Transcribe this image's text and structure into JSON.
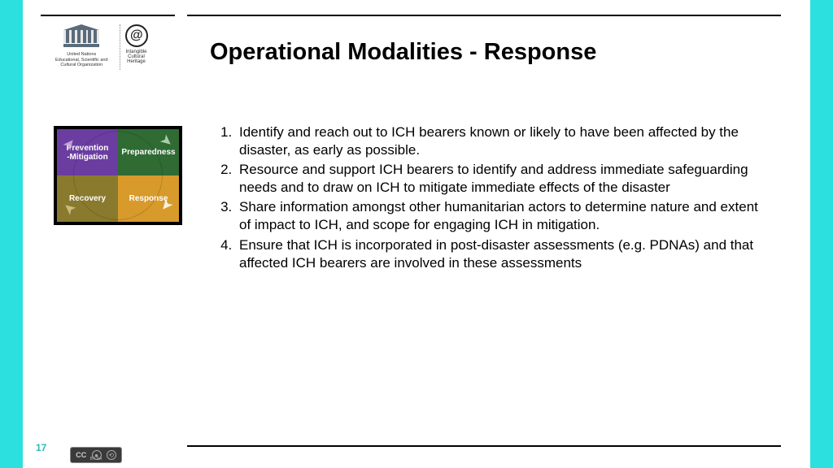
{
  "frame": {
    "bg": "#2de0e0",
    "slide_bg": "#ffffff",
    "rule_color": "#000000"
  },
  "logo": {
    "unesco_lines": [
      "United Nations",
      "Educational, Scientific and",
      "Cultural Organization"
    ],
    "ich_lines": [
      "Intangible",
      "Cultural",
      "Heritage"
    ],
    "unesco_word": "UNESCO"
  },
  "title": "Operational Modalities - Response",
  "diagram": {
    "quads": [
      {
        "pos": "tl",
        "label": "Prevention\n-Mitigation",
        "color": "#6b3da0"
      },
      {
        "pos": "tr",
        "label": "Preparedness",
        "color": "#2f6b33"
      },
      {
        "pos": "br",
        "label": "Response",
        "color": "#d79a2b"
      },
      {
        "pos": "bl",
        "label": "Recovery",
        "color": "#8a7a2e"
      }
    ]
  },
  "list_items": [
    "Identify and reach out to ICH bearers known or likely to have been affected by the disaster, as early as possible.",
    "Resource and support ICH bearers to identify and address immediate safeguarding needs and to draw on ICH to mitigate immediate effects of the disaster",
    "Share information amongst other humanitarian actors to determine nature and extent of impact to ICH, and scope for engaging ICH in mitigation.",
    "Ensure that ICH is incorporated in post-disaster assessments (e.g. PDNAs) and that affected ICH bearers are involved in these assessments"
  ],
  "page_number": "17",
  "cc": {
    "label": "CC",
    "sub": "BY    SA"
  }
}
